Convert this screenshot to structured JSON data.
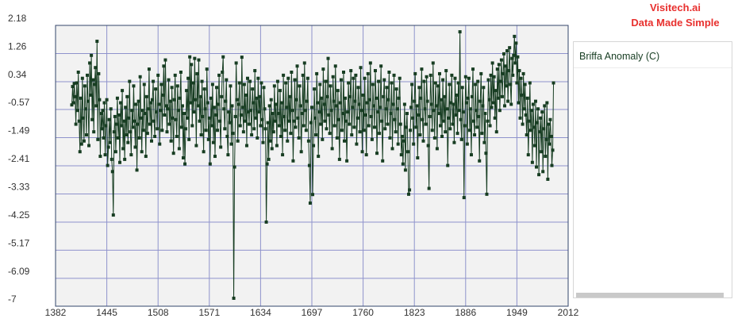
{
  "branding": {
    "line1": "Visitech.ai",
    "line2": "Data Made Simple",
    "color": "#e8302e"
  },
  "colors": {
    "plot_background": "#f2f2f2",
    "grid": "#8f93cc",
    "axis_border": "#33456b"
  },
  "chart_data": {
    "type": "line",
    "markers": "square",
    "xlim": [
      1382,
      2012
    ],
    "ylim": [
      -7,
      2.18
    ],
    "x_ticks": [
      "1382",
      "1445",
      "1508",
      "1571",
      "1634",
      "1697",
      "1760",
      "1823",
      "1886",
      "1949",
      "2012"
    ],
    "y_ticks": [
      "2.18",
      "1.26",
      "0.34",
      "-0.57",
      "-1.49",
      "-2.41",
      "-3.33",
      "-4.25",
      "-5.17",
      "-6.09",
      "-7"
    ],
    "grid": true,
    "legend_position": "right",
    "series": [
      {
        "name": "Briffa Anomaly (C)",
        "color": "#173d22",
        "x_start": 1402,
        "x_step": 1,
        "y": [
          -0.42,
          0.18,
          -0.35,
          0.28,
          -0.15,
          -1.05,
          0.3,
          -0.6,
          0.65,
          -0.95,
          -1.95,
          -0.2,
          -1.7,
          0.45,
          -0.85,
          -1.6,
          0.2,
          -0.55,
          -1.4,
          0.55,
          -0.3,
          -1.75,
          0.95,
          -0.1,
          1.2,
          -0.9,
          0.4,
          -1.3,
          0.25,
          0.8,
          -0.45,
          1.66,
          -1.55,
          0.6,
          -0.25,
          -2.1,
          -0.7,
          -1.2,
          -0.6,
          -1.5,
          -0.35,
          -2.05,
          -1.1,
          -0.25,
          -2.4,
          -1.8,
          -0.9,
          -1.65,
          -0.55,
          -2.2,
          -2.6,
          -4.02,
          -1.3,
          -0.8,
          -1.95,
          -1.05,
          -0.2,
          -1.5,
          -0.75,
          -2.3,
          -0.35,
          -1.1,
          0.05,
          -1.85,
          -0.95,
          -2.2,
          -0.5,
          -1.4,
          -0.15,
          -1.65,
          -0.85,
          0.35,
          -1.3,
          -2.05,
          -0.6,
          -1.15,
          0.2,
          -0.95,
          -1.8,
          -0.4,
          -2.55,
          -1.05,
          -0.3,
          -1.5,
          0.5,
          -0.85,
          -1.95,
          -0.6,
          -1.25,
          0.25,
          -0.7,
          -2.1,
          -0.15,
          -1.35,
          -0.55,
          0.75,
          -1.05,
          -0.35,
          -1.6,
          -0.25,
          0.35,
          -0.95,
          -1.45,
          0.1,
          -0.65,
          -1.2,
          0.55,
          -0.4,
          -1.7,
          -0.6,
          0.25,
          -1.25,
          -0.1,
          0.85,
          -0.75,
          1.05,
          -0.45,
          -1.3,
          -0.55,
          0.4,
          -1.05,
          -0.3,
          -1.6,
          0.15,
          -0.85,
          -2.0,
          -0.25,
          0.55,
          -0.9,
          -1.45,
          0.2,
          -0.6,
          -1.85,
          -0.2,
          0.65,
          -1.15,
          -0.45,
          -2.15,
          -0.7,
          -2.35,
          -1.2,
          0.05,
          -0.85,
          0.45,
          -1.55,
          1.15,
          -0.35,
          0.9,
          -1.1,
          0.3,
          -0.65,
          1.1,
          -0.25,
          -1.75,
          0.6,
          -0.45,
          1.05,
          -0.95,
          -0.15,
          -1.4,
          0.35,
          -0.8,
          -1.95,
          0.1,
          -0.55,
          -1.25,
          0.75,
          -0.35,
          -1.55,
          -0.85,
          -2.35,
          -0.2,
          -1.1,
          0.25,
          -1.65,
          -0.5,
          -2.1,
          -0.75,
          0.15,
          -1.25,
          -0.4,
          0.55,
          -0.95,
          -1.8,
          -0.15,
          0.65,
          1.15,
          -0.55,
          -1.2,
          -0.3,
          0.4,
          -1.45,
          -2.05,
          -0.65,
          -1.0,
          0.2,
          -1.7,
          -0.45,
          -1.35,
          -6.74,
          -2.45,
          -0.8,
          0.95,
          -0.25,
          -1.6,
          -0.4,
          0.3,
          -1.1,
          -0.75,
          1.14,
          -0.5,
          -1.3,
          0.25,
          -0.95,
          -0.1,
          -1.75,
          0.45,
          -0.65,
          -1.05,
          0.35,
          -0.6,
          -1.4,
          0.1,
          -0.35,
          -1.2,
          0.7,
          -0.85,
          -0.2,
          -1.5,
          0.45,
          -0.65,
          -0.15,
          -1.1,
          0.3,
          -0.9,
          -1.65,
          0.15,
          -0.55,
          -1.2,
          -4.25,
          -2.35,
          -1.0,
          -2.2,
          -0.45,
          -1.6,
          -0.25,
          -1.85,
          -0.7,
          -1.3,
          0.2,
          -0.95,
          -0.4,
          -1.75,
          0.35,
          -0.7,
          -1.1,
          0.05,
          -1.45,
          -0.35,
          -2.05,
          0.55,
          -0.8,
          -1.25,
          0.3,
          -0.5,
          -1.6,
          0.45,
          -0.95,
          -0.15,
          -1.35,
          0.65,
          -0.6,
          -2.25,
          -0.95,
          0.4,
          -1.15,
          -0.25,
          0.85,
          -0.85,
          -1.5,
          0.2,
          -0.45,
          -1.95,
          -0.7,
          0.55,
          -1.1,
          0.95,
          -0.6,
          -1.25,
          -0.3,
          0.45,
          -1.6,
          -2.4,
          -3.63,
          -1.0,
          -0.5,
          -3.35,
          -1.75,
          0.1,
          -0.85,
          -1.4,
          0.6,
          -0.35,
          -2.1,
          -0.65,
          0.25,
          -1.05,
          -0.2,
          -1.55,
          0.75,
          -0.4,
          -0.95,
          0.35,
          -1.2,
          -0.15,
          1.1,
          -0.75,
          -1.35,
          0.2,
          -0.6,
          -1.85,
          0.5,
          -0.3,
          -1.1,
          0.85,
          -0.45,
          -1.5,
          0.05,
          -0.9,
          -2.2,
          -0.35,
          0.4,
          -1.25,
          -0.7,
          0.65,
          -1.6,
          -0.2,
          -0.95,
          -2.25,
          -0.65,
          0.3,
          -1.05,
          -0.15,
          0.7,
          -1.4,
          -0.5,
          0.45,
          -1.15,
          -0.3,
          0.55,
          -1.7,
          -0.85,
          0.15,
          -0.4,
          -1.3,
          0.8,
          -0.6,
          -1.95,
          -0.1,
          -1.25,
          0.45,
          -0.75,
          -2.05,
          -0.35,
          0.6,
          -1.1,
          -0.25,
          0.95,
          -0.8,
          -1.55,
          0.25,
          -0.45,
          -1.15,
          0.7,
          -0.2,
          -2.0,
          -0.65,
          0.35,
          -1.35,
          -0.5,
          0.85,
          -0.95,
          -2.25,
          -0.15,
          0.4,
          -1.2,
          -0.55,
          0.15,
          -1.05,
          -0.25,
          0.65,
          -1.5,
          -0.7,
          0.3,
          -1.85,
          -0.4,
          0.55,
          -0.9,
          -1.3,
          0.1,
          -0.55,
          -1.7,
          -0.2,
          0.45,
          -1.05,
          -2.05,
          -1.45,
          -2.35,
          -1.6,
          -0.4,
          -2.55,
          -1.15,
          -0.7,
          -1.95,
          -3.34,
          -3.2,
          -1.25,
          -0.5,
          0.25,
          -0.85,
          -1.7,
          -0.3,
          0.6,
          -1.15,
          -0.45,
          -2.15,
          -0.75,
          0.15,
          -1.4,
          -0.2,
          0.75,
          -0.9,
          -1.6,
          0.35,
          -0.55,
          -1.05,
          0.5,
          -0.3,
          -1.75,
          -3.15,
          -0.8,
          0.55,
          -0.4,
          -1.25,
          0.95,
          -0.6,
          -1.5,
          0.3,
          -0.45,
          -1.85,
          0.2,
          -0.7,
          0.6,
          -1.1,
          -0.25,
          -1.45,
          0.4,
          -0.95,
          -0.15,
          -1.3,
          0.7,
          -0.55,
          -2.4,
          -0.85,
          0.25,
          -1.2,
          -0.35,
          0.55,
          -1.05,
          -0.4,
          -1.65,
          0.45,
          -0.75,
          -0.1,
          -1.35,
          0.3,
          -0.6,
          1.97,
          -0.9,
          -1.55,
          0.15,
          -0.65,
          -3.45,
          -1.1,
          0.5,
          -0.35,
          -1.7,
          -0.2,
          0.45,
          -1.25,
          -0.55,
          -2.05,
          -0.15,
          0.75,
          -0.95,
          -1.4,
          0.25,
          -0.6,
          -1.15,
          0.35,
          -0.8,
          -2.25,
          -0.3,
          0.6,
          -1.35,
          -0.45,
          0.15,
          -1.65,
          -0.7,
          -2.0,
          -3.34,
          -0.95,
          0.4,
          -0.25,
          -1.1,
          0.55,
          -0.5,
          0.95,
          -0.35,
          0.5,
          -0.85,
          0.05,
          -1.3,
          0.75,
          -0.2,
          0.9,
          -0.6,
          0.35,
          1.05,
          -0.15,
          0.6,
          1.25,
          -0.45,
          0.85,
          0.2,
          1.35,
          -0.3,
          0.7,
          1.45,
          0.25,
          -0.4,
          1.1,
          0.55,
          1.2,
          1.82,
          0.95,
          1.6,
          0.3,
          1.15,
          -0.35,
          0.7,
          -0.85,
          0.45,
          -0.1,
          -1.05,
          0.6,
          -0.55,
          0.25,
          -0.75,
          -1.4,
          -0.2,
          -2.05,
          -0.95,
          0.3,
          -1.25,
          -0.6,
          -2.3,
          -0.4,
          -1.15,
          -1.75,
          -0.3,
          -2.45,
          -1.0,
          -0.55,
          -2.7,
          -1.3,
          -0.85,
          -1.95,
          -0.65,
          -2.6,
          -1.2,
          -0.45,
          -2.1,
          -1.55,
          -0.35,
          -2.85,
          -1.05,
          -1.7,
          -0.9,
          -1.45,
          -2.4,
          -1.9,
          0.3
        ]
      }
    ]
  }
}
